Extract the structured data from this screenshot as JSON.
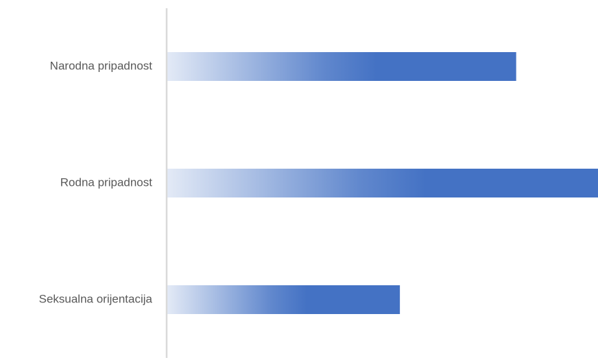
{
  "chart_data": {
    "type": "bar",
    "orientation": "horizontal",
    "categories": [
      "Narodna pripadnost",
      "Rodna pripadnost",
      "Seksualna orijentacija"
    ],
    "values": [
      81,
      100,
      54
    ],
    "xlim": [
      0,
      100
    ],
    "title": "",
    "xlabel": "",
    "ylabel": "",
    "grid": false,
    "legend": "none",
    "bar_color": "#4472C4",
    "bar_fill": "gradient-fade-left"
  }
}
